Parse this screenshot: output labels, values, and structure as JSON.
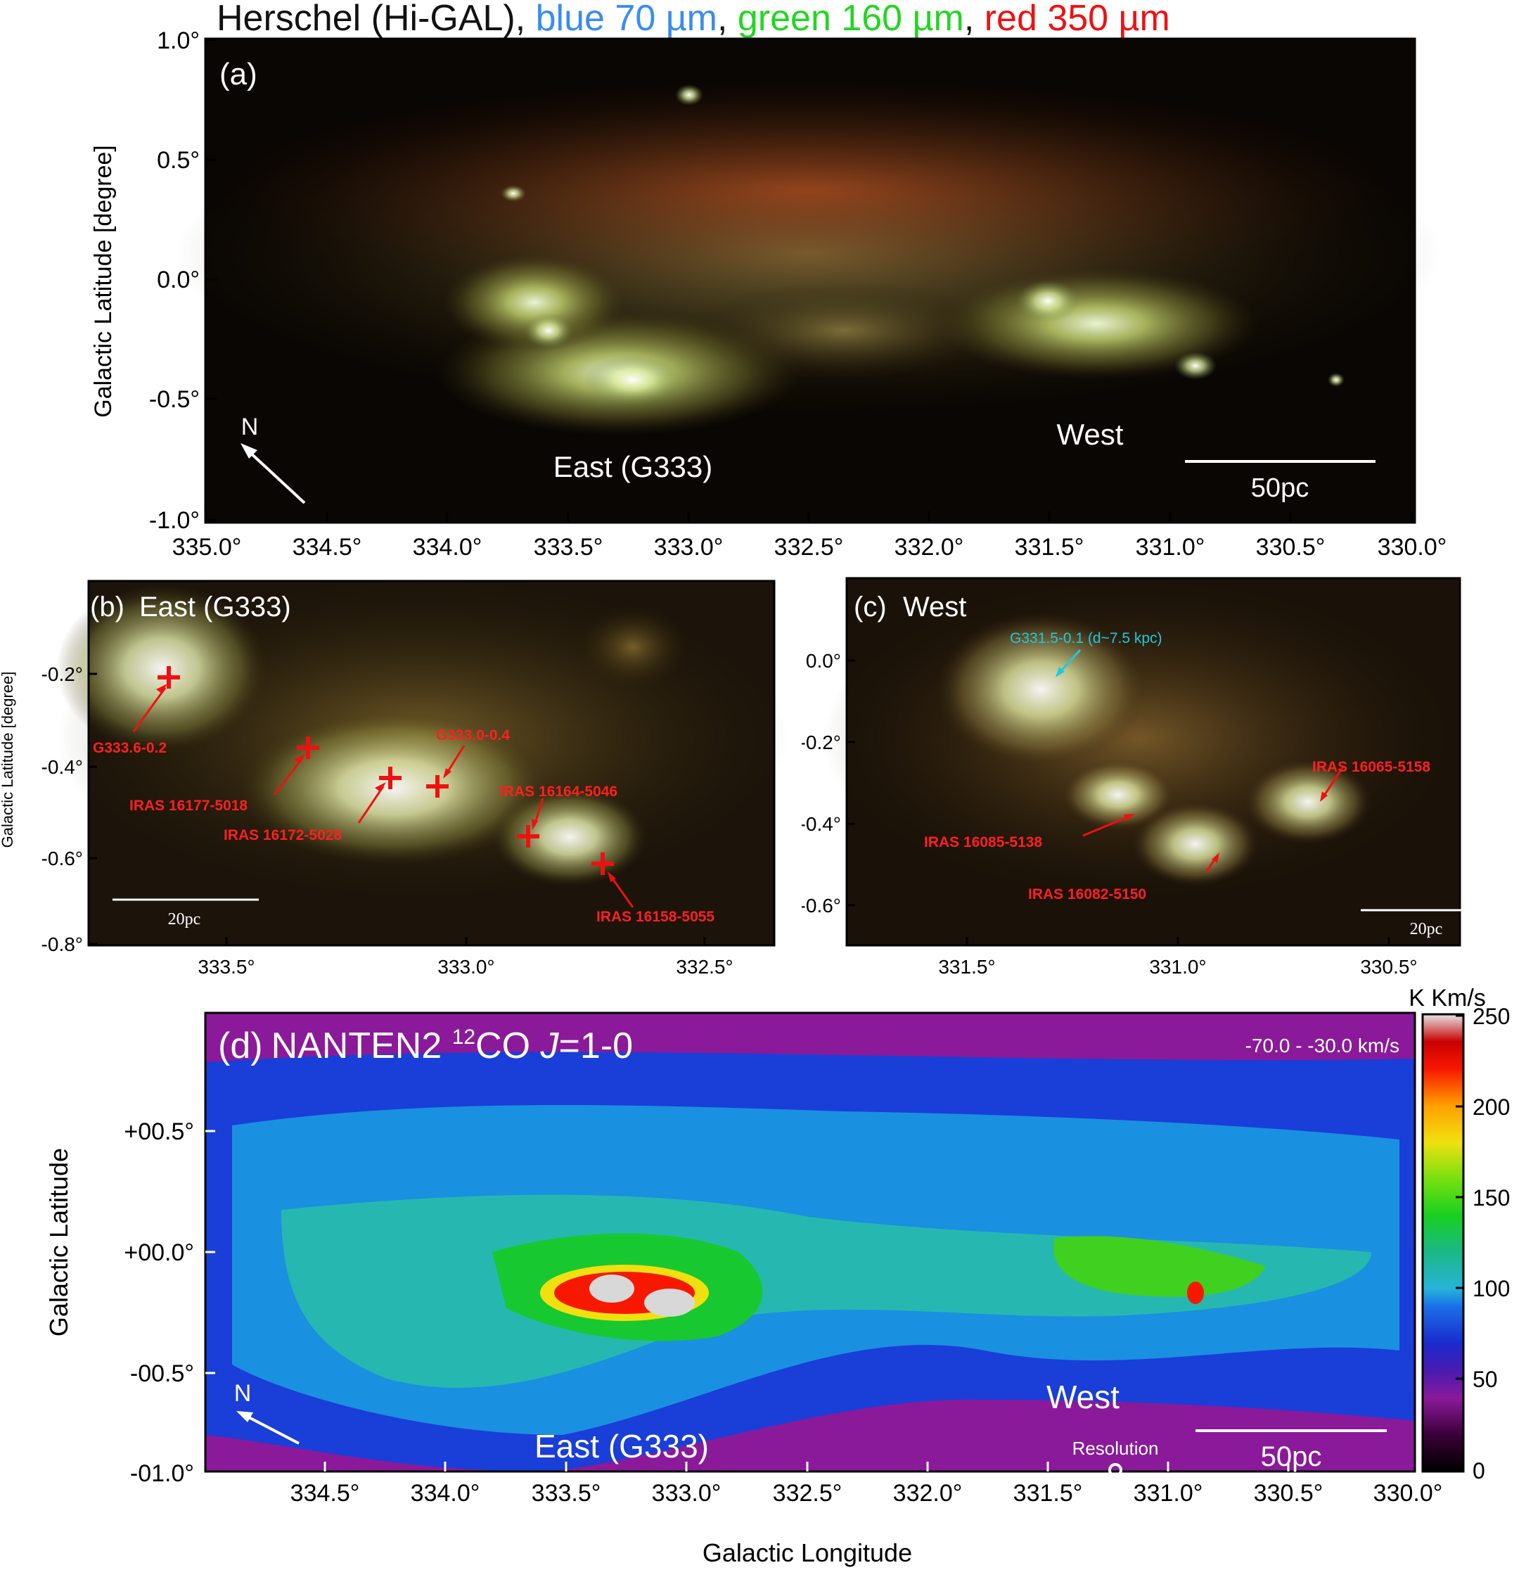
{
  "figure": {
    "panel_a": {
      "title_parts": [
        "Herschel (Hi-GAL), ",
        "blue 70 µm",
        ", ",
        "green 160 µm",
        ", ",
        "red 350 µm"
      ],
      "title_colors": [
        "#1a1a1a",
        "#3a8cf0",
        "#1a1a1a",
        "#22d622",
        "#1a1a1a",
        "#ee1111"
      ],
      "label": "(a)",
      "ylabel": "Galactic Latitude [degree]",
      "yticks": [
        "1.0°",
        "0.5°",
        "0.0°",
        "-0.5°",
        "-1.0°"
      ],
      "xticks": [
        "335.0°",
        "334.5°",
        "334.0°",
        "333.5°",
        "333.0°",
        "332.5°",
        "332.0°",
        "331.5°",
        "331.0°",
        "330.5°",
        "330.0°"
      ],
      "north": "N",
      "east_label": "East (G333)",
      "west_label": "West",
      "scalebar": "50pc"
    },
    "panel_b": {
      "label": "(b)",
      "title": "East (G333)",
      "ylabel": "Galactic Latitude [degree]",
      "yticks": [
        "-0.2°",
        "-0.4°",
        "-0.6°",
        "-0.8°"
      ],
      "xticks": [
        "333.5°",
        "333.0°",
        "332.5°"
      ],
      "scalebar": "20pc",
      "sources": [
        "G333.6-0.2",
        "IRAS 16177-5018",
        "IRAS 16172-5028",
        "G333.0-0.4",
        "IRAS 16164-5046",
        "IRAS 16158-5055"
      ],
      "source_color": "#ff2020"
    },
    "panel_c": {
      "label": "(c)",
      "title": "West",
      "yticks": [
        "0.0°",
        "-0.2°",
        "-0.4°",
        "-0.6°"
      ],
      "xticks": [
        "331.5°",
        "331.0°",
        "330.5°"
      ],
      "scalebar": "20pc",
      "highlight": "G331.5-0.1 (d~7.5 kpc)",
      "highlight_color": "#20c8e0",
      "sources": [
        "IRAS 16065-5158",
        "IRAS 16085-5138",
        "IRAS 16082-5150"
      ]
    },
    "panel_d": {
      "label": "(d)",
      "title_pre": "NANTEN2 ",
      "title_sup": "12",
      "title_mid": "CO ",
      "title_j": "J",
      "title_post": "=1-0",
      "velocity": "-70.0 - -30.0 km/s",
      "ylabel": "Galactic Latitude",
      "xlabel": "Galactic Longitude",
      "yticks": [
        "+00.5°",
        "+00.0°",
        "-00.5°",
        "-01.0°"
      ],
      "xticks": [
        "334.5°",
        "334.0°",
        "333.5°",
        "333.0°",
        "332.5°",
        "332.0°",
        "331.5°",
        "331.0°",
        "330.5°",
        "330.0°"
      ],
      "north": "N",
      "east_label": "East (G333)",
      "west_label": "West",
      "resolution": "Resolution",
      "scalebar": "50pc",
      "colorbar_unit": "K Km/s",
      "colorbar_ticks": [
        "250",
        "200",
        "150",
        "100",
        "50",
        "0"
      ]
    }
  }
}
